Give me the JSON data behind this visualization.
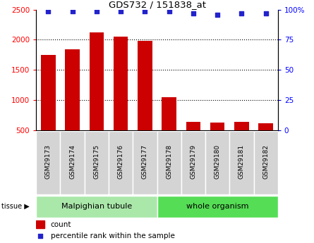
{
  "title": "GDS732 / 151838_at",
  "samples": [
    "GSM29173",
    "GSM29174",
    "GSM29175",
    "GSM29176",
    "GSM29177",
    "GSM29178",
    "GSM29179",
    "GSM29180",
    "GSM29181",
    "GSM29182"
  ],
  "counts": [
    1750,
    1840,
    2120,
    2050,
    1980,
    1040,
    640,
    620,
    640,
    610
  ],
  "percentiles": [
    99,
    99,
    99,
    99,
    99,
    99,
    97,
    96,
    97,
    97
  ],
  "bar_color": "#cc0000",
  "dot_color": "#2222cc",
  "ylim_left": [
    500,
    2500
  ],
  "ylim_right": [
    0,
    100
  ],
  "yticks_left": [
    500,
    1000,
    1500,
    2000,
    2500
  ],
  "yticks_right": [
    0,
    25,
    50,
    75,
    100
  ],
  "tissue_groups": [
    {
      "label": "Malpighian tubule",
      "count": 5,
      "color": "#99ee99"
    },
    {
      "label": "whole organism",
      "count": 5,
      "color": "#55ee55"
    }
  ],
  "tissue_label": "tissue",
  "legend_count_label": "count",
  "legend_percentile_label": "percentile rank within the sample",
  "bg_color": "#ffffff",
  "xticklabel_bg": "#cccccc",
  "bar_width": 0.6
}
